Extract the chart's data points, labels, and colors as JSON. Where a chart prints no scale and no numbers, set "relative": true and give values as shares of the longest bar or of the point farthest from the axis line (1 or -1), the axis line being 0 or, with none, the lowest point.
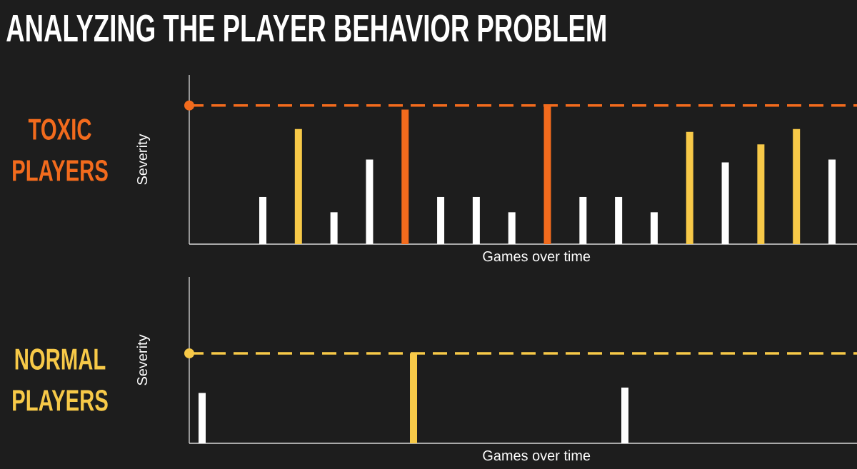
{
  "chart_data": [
    {
      "type": "bar",
      "title": "ANALYZING THE PLAYER BEHAVIOR PROBLEM",
      "subtitle": "TOXIC PLAYERS",
      "xlabel": "Games over time",
      "ylabel": "Severity",
      "relative": true,
      "tick_labels": false,
      "categories": [
        null,
        null,
        null,
        null,
        null,
        null,
        null,
        null,
        null,
        null,
        null,
        null,
        null,
        null,
        null,
        null,
        null
      ],
      "values": [
        0.34,
        0.83,
        0.23,
        0.61,
        0.97,
        0.34,
        0.34,
        0.23,
        1,
        0.34,
        0.34,
        0.23,
        0.81,
        0.59,
        0.72,
        0.83,
        0.61
      ],
      "colors": [
        "#ffffff",
        "#f7c948",
        "#ffffff",
        "#ffffff",
        "#f26b1d",
        "#ffffff",
        "#ffffff",
        "#ffffff",
        "#f26b1d",
        "#ffffff",
        "#ffffff",
        "#ffffff",
        "#f7c948",
        "#ffffff",
        "#f7c948",
        "#f7c948",
        "#ffffff"
      ],
      "ref_lines": [
        {
          "axis": "y",
          "value": 1,
          "color": "#f26b1d",
          "line_style": "dashed"
        }
      ]
    },
    {
      "type": "bar",
      "subtitle": "NORMAL PLAYERS",
      "xlabel": "Games over time",
      "ylabel": "Severity",
      "relative": true,
      "tick_labels": false,
      "categories": [
        null,
        null,
        null
      ],
      "values": [
        0.56,
        1,
        0.62
      ],
      "colors": [
        "#ffffff",
        "#f7c948",
        "#ffffff"
      ],
      "ref_lines": [
        {
          "axis": "y",
          "value": 1,
          "color": "#f7c948",
          "line_style": "dashed"
        }
      ]
    }
  ]
}
